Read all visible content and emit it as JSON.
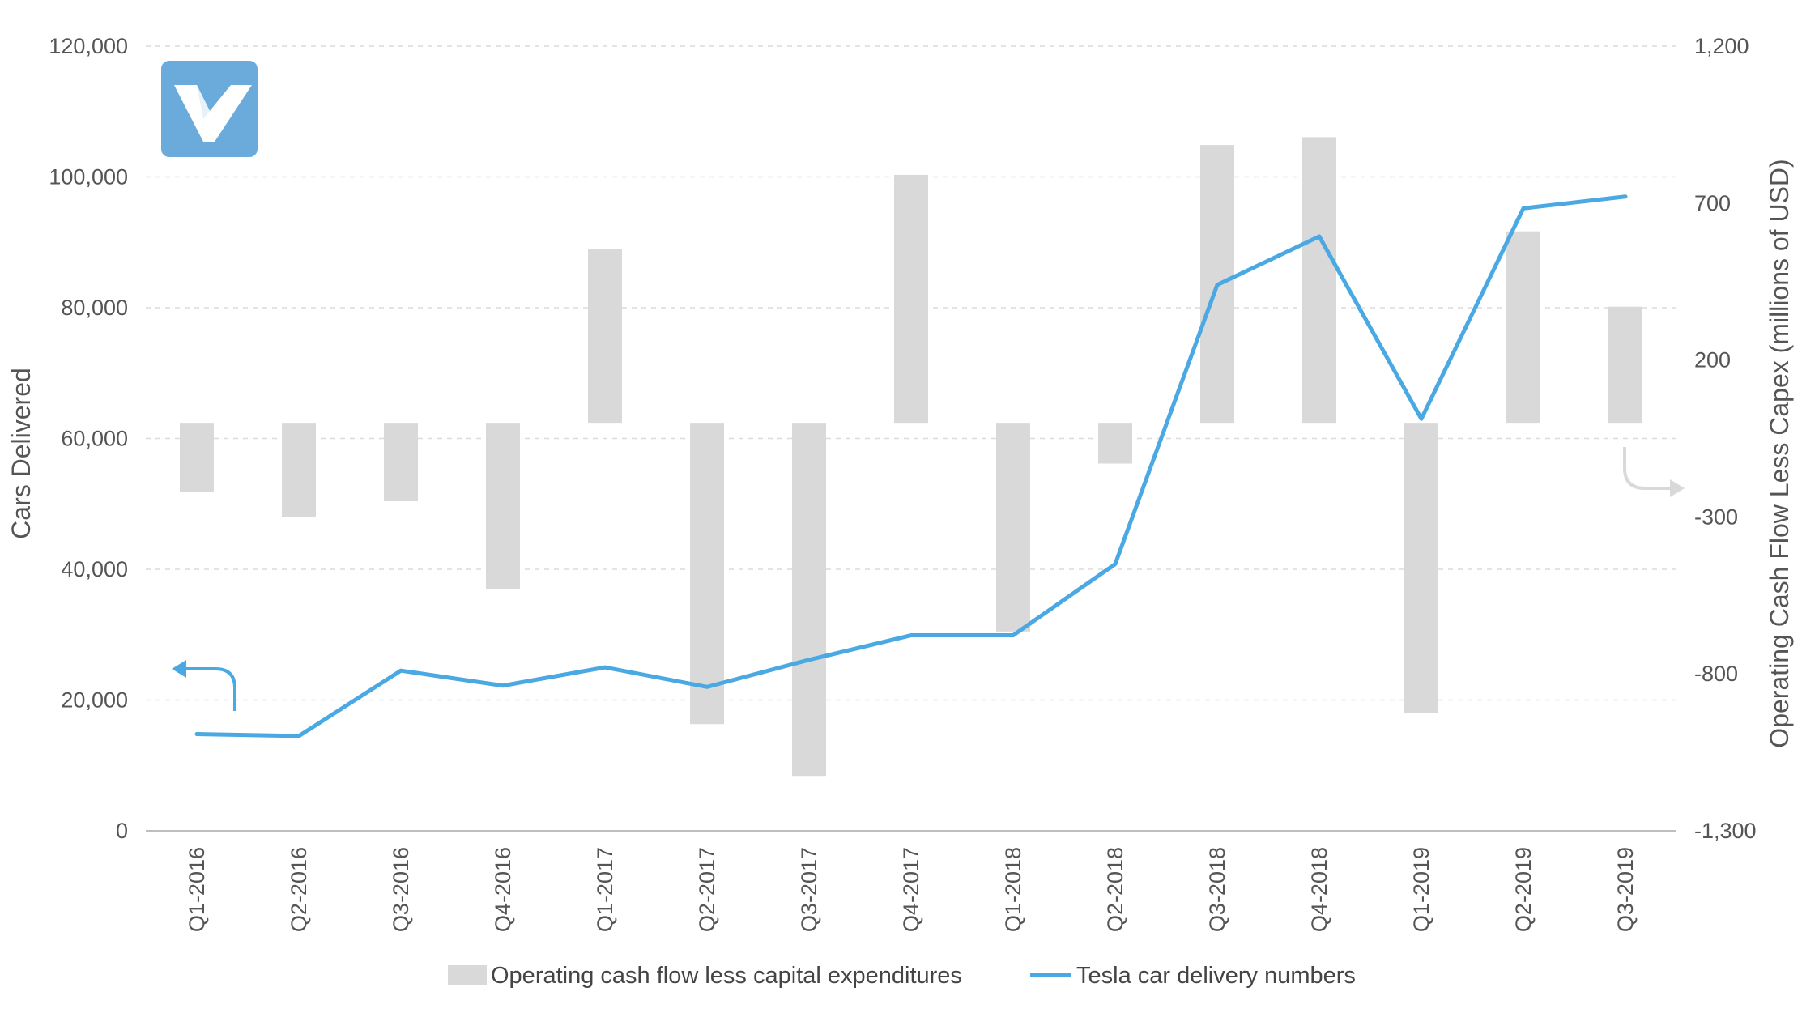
{
  "chart_data": {
    "type": "bar",
    "categories": [
      "Q1-2016",
      "Q2-2016",
      "Q3-2016",
      "Q4-2016",
      "Q1-2017",
      "Q2-2017",
      "Q3-2017",
      "Q4-2017",
      "Q1-2018",
      "Q2-2018",
      "Q3-2018",
      "Q4-2018",
      "Q1-2019",
      "Q2-2019",
      "Q3-2019"
    ],
    "series": [
      {
        "name": "Operating cash flow less capital expenditures",
        "type": "bar",
        "axis": "right",
        "color": "#d9d9d9",
        "values": [
          -220,
          -300,
          -250,
          -530,
          555,
          -960,
          -1125,
          790,
          -665,
          -130,
          885,
          910,
          -925,
          610,
          370
        ]
      },
      {
        "name": "Tesla car delivery numbers",
        "type": "line",
        "axis": "left",
        "color": "#4aa8e2",
        "values": [
          14800,
          14500,
          24500,
          22200,
          25000,
          22000,
          26150,
          29900,
          29900,
          40800,
          83500,
          90900,
          63000,
          95200,
          97000
        ]
      }
    ],
    "left_axis": {
      "label": "Cars Delivered",
      "range": [
        0,
        120000
      ],
      "ticks": [
        "0",
        "20,000",
        "40,000",
        "60,000",
        "80,000",
        "100,000",
        "120,000"
      ]
    },
    "right_axis": {
      "label": "Operating Cash Flow Less Capex (millions of USD)",
      "range": [
        -1300,
        1200
      ],
      "ticks": [
        "-1,300",
        "-800",
        "-300",
        "200",
        "700",
        "1,200"
      ]
    },
    "grid": true,
    "legend_position": "bottom",
    "logo": {
      "name": "logo-icon",
      "color": "#6aabdc"
    }
  }
}
